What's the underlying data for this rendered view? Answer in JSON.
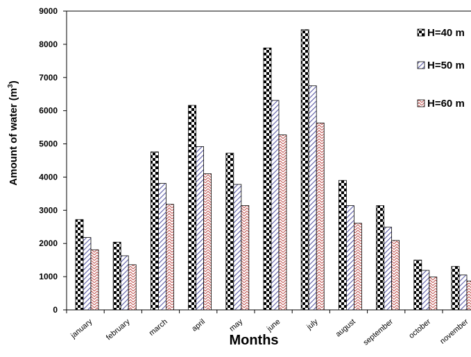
{
  "chart_data": {
    "type": "bar",
    "categories": [
      "january",
      "february",
      "march",
      "april",
      "may",
      "june",
      "july",
      "august",
      "september",
      "october",
      "november"
    ],
    "series": [
      {
        "name": "H=40 m",
        "pattern": "checker",
        "values": [
          2720,
          2040,
          4760,
          6160,
          4720,
          7890,
          8440,
          3900,
          3140,
          1500,
          1310
        ]
      },
      {
        "name": "H=50 m",
        "pattern": "diag-blue",
        "values": [
          2180,
          1630,
          3810,
          4920,
          3780,
          6310,
          6750,
          3140,
          2490,
          1190,
          1050
        ]
      },
      {
        "name": "H=60 m",
        "pattern": "herring-red",
        "values": [
          1810,
          1360,
          3180,
          4100,
          3140,
          5270,
          5630,
          2610,
          2090,
          990,
          870
        ]
      }
    ],
    "yticks": [
      0,
      1000,
      2000,
      3000,
      4000,
      5000,
      6000,
      7000,
      8000,
      9000
    ],
    "ylim": [
      0,
      9000
    ],
    "xlabel": "Months",
    "ylabel": "Amount of water (m",
    "ylabel_sup": "3",
    "ylabel_end": ")",
    "legend_position": "top-right",
    "colors": {
      "axis": "#000000",
      "blue_hatch": "#5a5aa6",
      "red_hatch": "#c0504d"
    }
  }
}
